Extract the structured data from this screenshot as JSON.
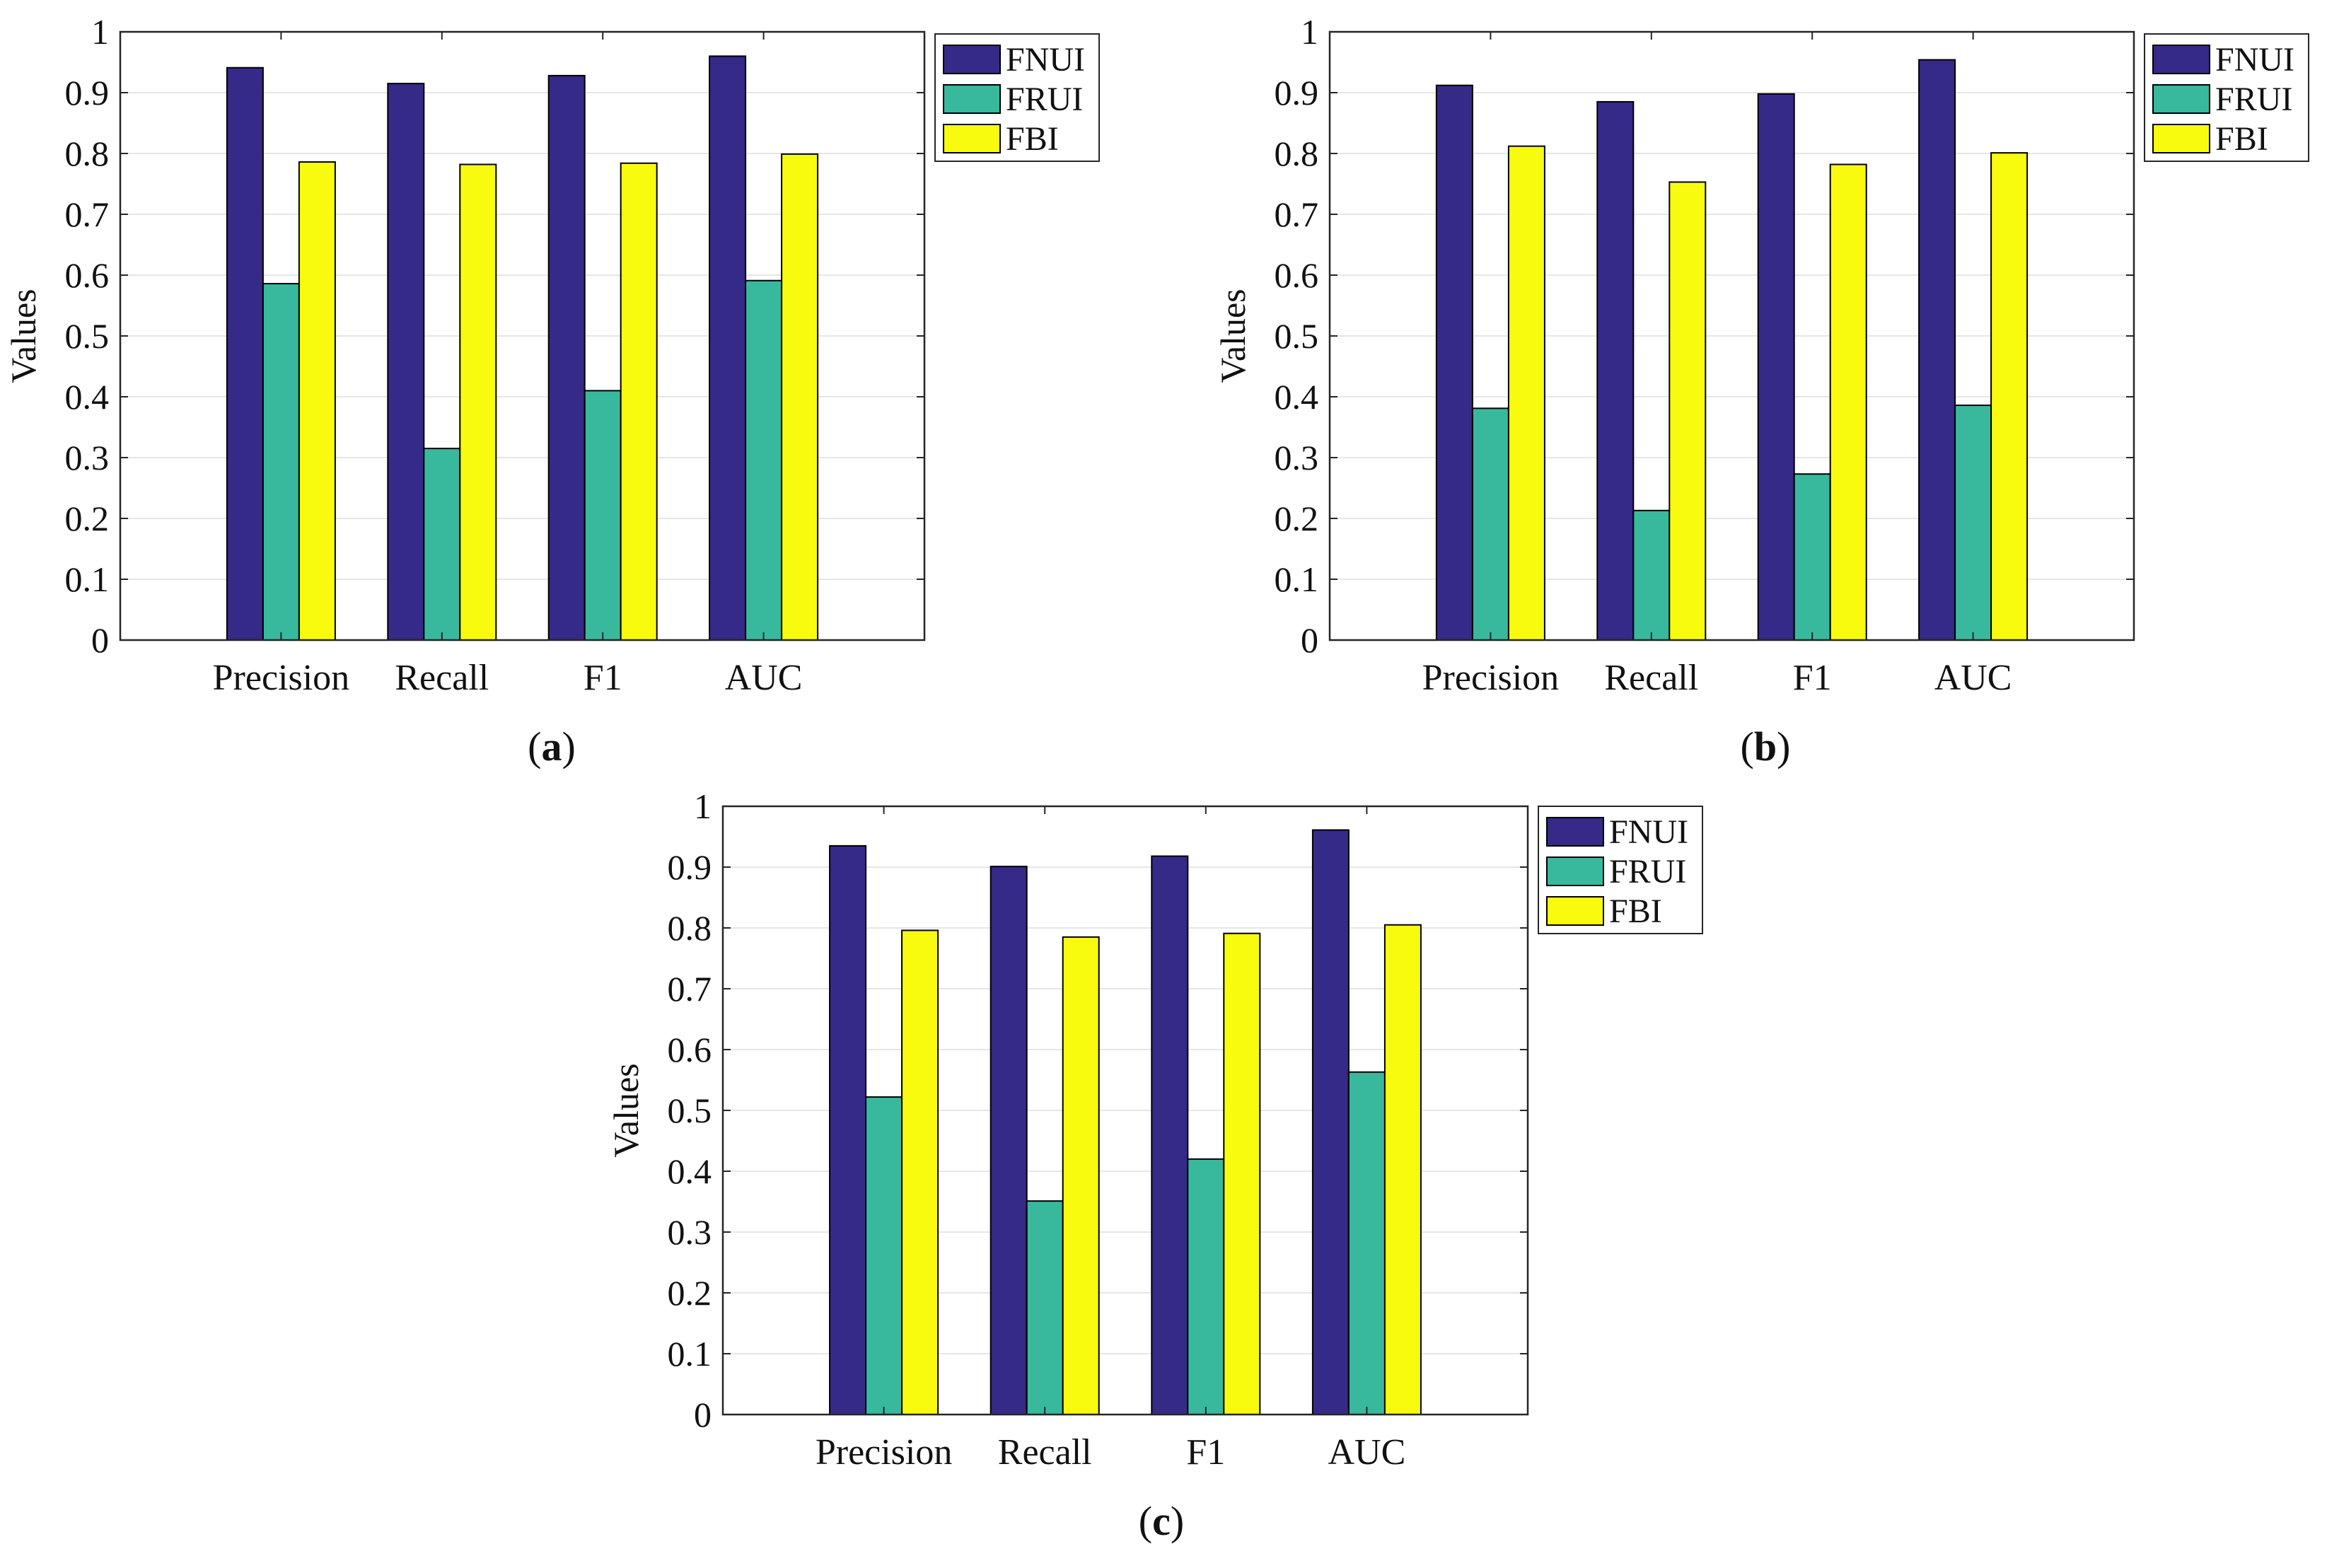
{
  "figure": {
    "colors": {
      "FNUI": "#352a87",
      "FRUI": "#38b99e",
      "FBI": "#f9fb0e",
      "grid": "#e6e6e6",
      "axis": "#262626"
    }
  },
  "chart_data": [
    {
      "type": "bar",
      "panel_label": "a",
      "categories": [
        "Precision",
        "Recall",
        "F1",
        "AUC"
      ],
      "series": [
        {
          "name": "FNUI",
          "values": [
            0.941,
            0.915,
            0.928,
            0.96
          ]
        },
        {
          "name": "FRUI",
          "values": [
            0.586,
            0.315,
            0.41,
            0.591
          ]
        },
        {
          "name": "FBI",
          "values": [
            0.786,
            0.782,
            0.784,
            0.799
          ]
        }
      ],
      "ylabel": "Values",
      "xlabel": "",
      "ylim": [
        0,
        1
      ],
      "yticks": [
        "0",
        "0.1",
        "0.2",
        "0.3",
        "0.4",
        "0.5",
        "0.6",
        "0.7",
        "0.8",
        "0.9",
        "1"
      ],
      "grid": true,
      "legend": "top-right outside"
    },
    {
      "type": "bar",
      "panel_label": "b",
      "categories": [
        "Precision",
        "Recall",
        "F1",
        "AUC"
      ],
      "series": [
        {
          "name": "FNUI",
          "values": [
            0.912,
            0.885,
            0.898,
            0.954
          ]
        },
        {
          "name": "FRUI",
          "values": [
            0.381,
            0.213,
            0.273,
            0.386
          ]
        },
        {
          "name": "FBI",
          "values": [
            0.812,
            0.753,
            0.782,
            0.801
          ]
        }
      ],
      "ylabel": "Values",
      "xlabel": "",
      "ylim": [
        0,
        1
      ],
      "yticks": [
        "0",
        "0.1",
        "0.2",
        "0.3",
        "0.4",
        "0.5",
        "0.6",
        "0.7",
        "0.8",
        "0.9",
        "1"
      ],
      "grid": true,
      "legend": "top-right outside"
    },
    {
      "type": "bar",
      "panel_label": "c",
      "categories": [
        "Precision",
        "Recall",
        "F1",
        "AUC"
      ],
      "series": [
        {
          "name": "FNUI",
          "values": [
            0.935,
            0.901,
            0.918,
            0.961
          ]
        },
        {
          "name": "FRUI",
          "values": [
            0.522,
            0.351,
            0.42,
            0.563
          ]
        },
        {
          "name": "FBI",
          "values": [
            0.796,
            0.785,
            0.791,
            0.805
          ]
        }
      ],
      "ylabel": "Values",
      "xlabel": "",
      "ylim": [
        0,
        1
      ],
      "yticks": [
        "0",
        "0.1",
        "0.2",
        "0.3",
        "0.4",
        "0.5",
        "0.6",
        "0.7",
        "0.8",
        "0.9",
        "1"
      ],
      "grid": true,
      "legend": "top-right outside"
    }
  ]
}
